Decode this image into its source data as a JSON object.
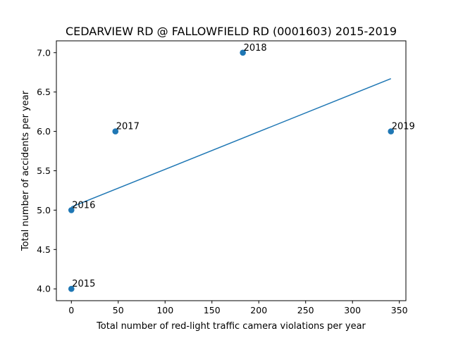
{
  "chart_data": {
    "type": "scatter",
    "title": "CEDARVIEW RD @ FALLOWFIELD RD (0001603) 2015-2019",
    "xlabel": "Total number of red-light traffic camera violations per year",
    "ylabel": "Total number of accidents per year",
    "xlim": [
      -16,
      357
    ],
    "ylim": [
      3.85,
      7.15
    ],
    "xticks": [
      0,
      50,
      100,
      150,
      200,
      250,
      300,
      350
    ],
    "yticks": [
      4.0,
      4.5,
      5.0,
      5.5,
      6.0,
      6.5,
      7.0
    ],
    "grid": false,
    "points": [
      {
        "label": "2015",
        "x": 0,
        "y": 4
      },
      {
        "label": "2016",
        "x": 0,
        "y": 5
      },
      {
        "label": "2017",
        "x": 47,
        "y": 6
      },
      {
        "label": "2018",
        "x": 183,
        "y": 7
      },
      {
        "label": "2019",
        "x": 341,
        "y": 6
      }
    ],
    "trend_line": {
      "x": [
        0,
        341
      ],
      "y": [
        5.04,
        6.67
      ]
    },
    "colors": {
      "points": "#1f77b4",
      "line": "#1f77b4"
    }
  }
}
